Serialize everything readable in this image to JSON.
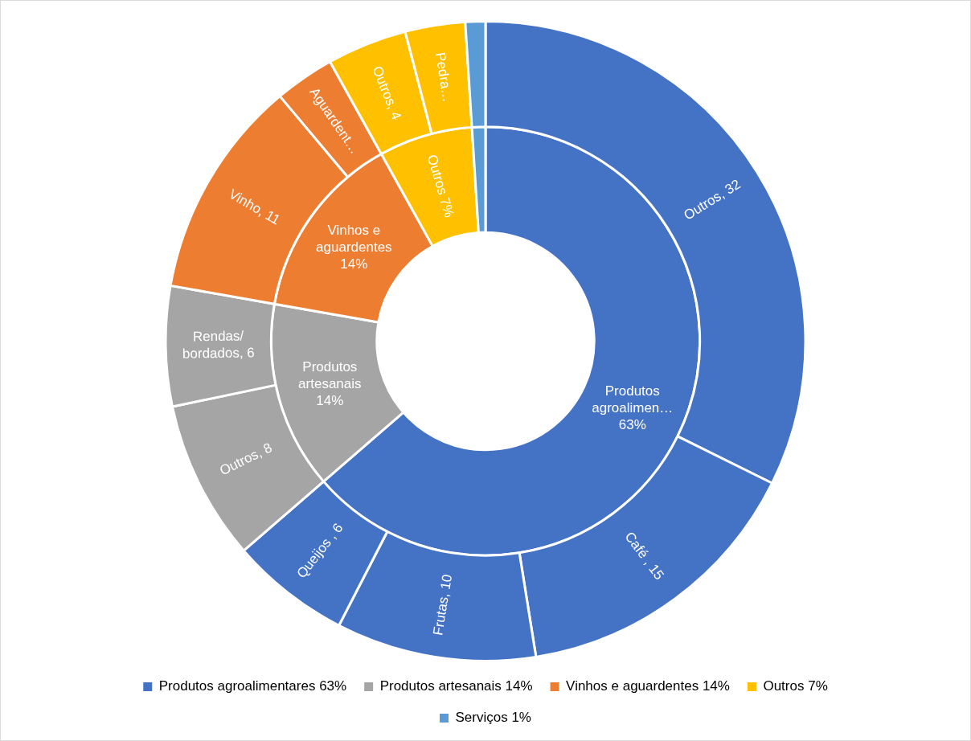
{
  "chart_data": [
    {
      "type": "donut",
      "legend": "bottom",
      "categories": [
        "Produtos agroalimentares 63%",
        "Produtos artesanais 14%",
        "Vinhos e aguardentes 14%",
        "Outros 7%",
        "Serviços 1%"
      ],
      "values": [
        63,
        14,
        14,
        7,
        1
      ],
      "colors": [
        "#4472c4",
        "#a5a5a5",
        "#ed7d31",
        "#ffc000",
        "#5b9bd5"
      ],
      "value_labels": [
        "Produtos\nagroalimen…\n63%",
        "Produtos\nartesanais\n14%",
        "Vinhos e\naguardentes\n14%",
        "Outros 7%",
        null
      ]
    },
    {
      "type": "donut",
      "values": [
        32,
        15,
        10,
        6,
        8,
        6,
        11,
        3,
        4,
        3,
        1
      ],
      "colors": [
        "#4472c4",
        "#4472c4",
        "#4472c4",
        "#4472c4",
        "#a5a5a5",
        "#a5a5a5",
        "#ed7d31",
        "#ed7d31",
        "#ffc000",
        "#ffc000",
        "#5b9bd5"
      ],
      "value_labels": [
        "Outros, 32",
        "Café , 15",
        "Frutas, 10",
        "Queijos , 6",
        "Outros, 8",
        "Rendas/\nbordados, 6",
        "Vinho, 11",
        "Aguardent…",
        "Outros, 4",
        "Pedra…",
        null
      ]
    }
  ]
}
